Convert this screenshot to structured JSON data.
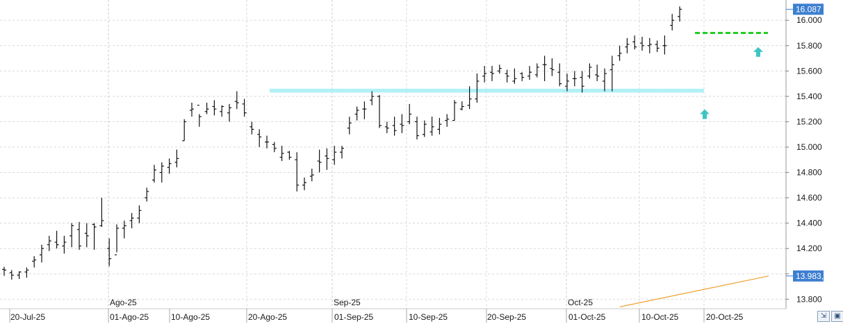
{
  "chart_data": {
    "type": "ohlc",
    "y_axis": {
      "ticks": [
        "16.000",
        "15.800",
        "15.600",
        "15.400",
        "15.200",
        "15.000",
        "14.800",
        "14.600",
        "14.400",
        "14.200",
        "14.000",
        "13.800"
      ],
      "tick_values": [
        16000,
        15800,
        15600,
        15400,
        15200,
        15000,
        14800,
        14600,
        14400,
        14200,
        14000,
        13800
      ],
      "ylim": [
        13750,
        16140
      ],
      "grid": true
    },
    "x_axis": {
      "month_labels": [
        "Ago-25",
        "Sep-25",
        "Oct-25"
      ],
      "date_labels": [
        "20-Jul-25",
        "01-Ago-25",
        "10-Ago-25",
        "20-Ago-25",
        "01-Sep-25",
        "10-Sep-25",
        "20-Sep-25",
        "01-Oct-25",
        "10-Oct-25",
        "20-Oct-25"
      ]
    },
    "last_price_label": "16.087",
    "last_price_value": 16087,
    "indicator_label": "13.983,4",
    "indicator_value": 13983.4,
    "indicator_line": {
      "color": "#f0a030",
      "start_value": 13740,
      "end_value": 13983.4
    },
    "support_band": {
      "low": 15430,
      "high": 15460,
      "color": "#a8eef5"
    },
    "resistance_line": {
      "value": 15900,
      "color": "#22cc22"
    },
    "arrows": [
      {
        "value": 15260,
        "color": "#3fc4c4"
      },
      {
        "value": 15750,
        "color": "#3fc4c4"
      }
    ],
    "bars": [
      [
        14035,
        14055,
        13985,
        14030
      ],
      [
        14010,
        14030,
        13955,
        13990
      ],
      [
        13990,
        14020,
        13960,
        14015
      ],
      [
        14015,
        14050,
        13970,
        14030
      ],
      [
        14100,
        14140,
        14050,
        14110
      ],
      [
        14150,
        14230,
        14090,
        14200
      ],
      [
        14230,
        14300,
        14180,
        14260
      ],
      [
        14250,
        14340,
        14200,
        14230
      ],
      [
        14220,
        14300,
        14160,
        14250
      ],
      [
        14300,
        14400,
        14210,
        14380
      ],
      [
        14350,
        14410,
        14190,
        14220
      ],
      [
        14320,
        14400,
        14210,
        14300
      ],
      [
        14390,
        14400,
        14190,
        14370
      ],
      [
        14380,
        14600,
        14370,
        14420
      ],
      [
        14200,
        14280,
        14060,
        14120
      ],
      [
        14150,
        14390,
        14170,
        14360
      ],
      [
        14360,
        14420,
        14280,
        14380
      ],
      [
        14420,
        14480,
        14360,
        14440
      ],
      [
        14440,
        14540,
        14400,
        14500
      ],
      [
        14600,
        14680,
        14570,
        14650
      ],
      [
        14740,
        14860,
        14720,
        14820
      ],
      [
        14800,
        14880,
        14720,
        14850
      ],
      [
        14840,
        14910,
        14790,
        14870
      ],
      [
        14880,
        14980,
        14840,
        14910
      ],
      [
        15050,
        15220,
        15050,
        15200
      ],
      [
        15290,
        15350,
        15240,
        15300
      ],
      [
        15330,
        15260,
        15160,
        15240
      ],
      [
        15280,
        15350,
        15260,
        15300
      ],
      [
        15320,
        15370,
        15250,
        15300
      ],
      [
        15280,
        15330,
        15240,
        15320
      ],
      [
        15270,
        15340,
        15200,
        15310
      ],
      [
        15360,
        15440,
        15300,
        15350
      ],
      [
        15340,
        15380,
        15240,
        15270
      ],
      [
        15160,
        15200,
        15100,
        15140
      ],
      [
        15100,
        15140,
        15000,
        15080
      ],
      [
        15040,
        15090,
        14990,
        15040
      ],
      [
        15020,
        15040,
        14960,
        14990
      ],
      [
        14920,
        15010,
        14890,
        14950
      ],
      [
        14960,
        14970,
        14900,
        14920
      ],
      [
        14900,
        14960,
        14650,
        14700
      ],
      [
        14700,
        14760,
        14660,
        14720
      ],
      [
        14770,
        14830,
        14730,
        14780
      ],
      [
        14890,
        14980,
        14800,
        14880
      ],
      [
        14930,
        14990,
        14820,
        14910
      ],
      [
        14900,
        15010,
        14860,
        14960
      ],
      [
        14960,
        15010,
        14910,
        14990
      ],
      [
        15150,
        15240,
        15100,
        15190
      ],
      [
        15260,
        15320,
        15210,
        15290
      ],
      [
        15300,
        15360,
        15220,
        15300
      ],
      [
        15370,
        15440,
        15330,
        15400
      ],
      [
        15400,
        15410,
        15150,
        15170
      ],
      [
        15160,
        15200,
        15110,
        15150
      ],
      [
        15170,
        15240,
        15090,
        15130
      ],
      [
        15180,
        15260,
        15110,
        15170
      ],
      [
        15200,
        15340,
        15180,
        15260
      ],
      [
        15200,
        15240,
        15060,
        15090
      ],
      [
        15100,
        15210,
        15080,
        15180
      ],
      [
        15120,
        15240,
        15090,
        15160
      ],
      [
        15140,
        15230,
        15100,
        15180
      ],
      [
        15210,
        15260,
        15160,
        15220
      ],
      [
        15210,
        15370,
        15210,
        15350
      ],
      [
        15300,
        15360,
        15290,
        15320
      ],
      [
        15330,
        15480,
        15300,
        15380
      ],
      [
        15380,
        15580,
        15350,
        15520
      ],
      [
        15560,
        15640,
        15510,
        15580
      ],
      [
        15590,
        15640,
        15520,
        15580
      ],
      [
        15600,
        15650,
        15580,
        15620
      ],
      [
        15580,
        15610,
        15510,
        15560
      ],
      [
        15520,
        15620,
        15500,
        15540
      ],
      [
        15580,
        15590,
        15520,
        15550
      ],
      [
        15560,
        15640,
        15530,
        15590
      ],
      [
        15570,
        15660,
        15550,
        15630
      ],
      [
        15650,
        15720,
        15520,
        15650
      ],
      [
        15620,
        15700,
        15560,
        15610
      ],
      [
        15590,
        15660,
        15480,
        15500
      ],
      [
        15480,
        15580,
        15440,
        15520
      ],
      [
        15540,
        15600,
        15480,
        15540
      ],
      [
        15550,
        15600,
        15430,
        15480
      ],
      [
        15560,
        15660,
        15540,
        15630
      ],
      [
        15570,
        15650,
        15520,
        15560
      ],
      [
        15520,
        15620,
        15440,
        15580
      ],
      [
        15610,
        15720,
        15440,
        15650
      ],
      [
        15720,
        15800,
        15680,
        15740
      ],
      [
        15790,
        15860,
        15740,
        15810
      ],
      [
        15830,
        15880,
        15770,
        15790
      ],
      [
        15820,
        15870,
        15760,
        15800
      ],
      [
        15800,
        15860,
        15740,
        15810
      ],
      [
        15810,
        15840,
        15750,
        15780
      ],
      [
        15800,
        15880,
        15730,
        15800
      ],
      [
        15960,
        16050,
        15920,
        16000
      ],
      [
        16030,
        16110,
        15990,
        16087
      ]
    ]
  },
  "ui": {
    "icon_a": "fit-icon",
    "icon_b": "save-icon"
  }
}
